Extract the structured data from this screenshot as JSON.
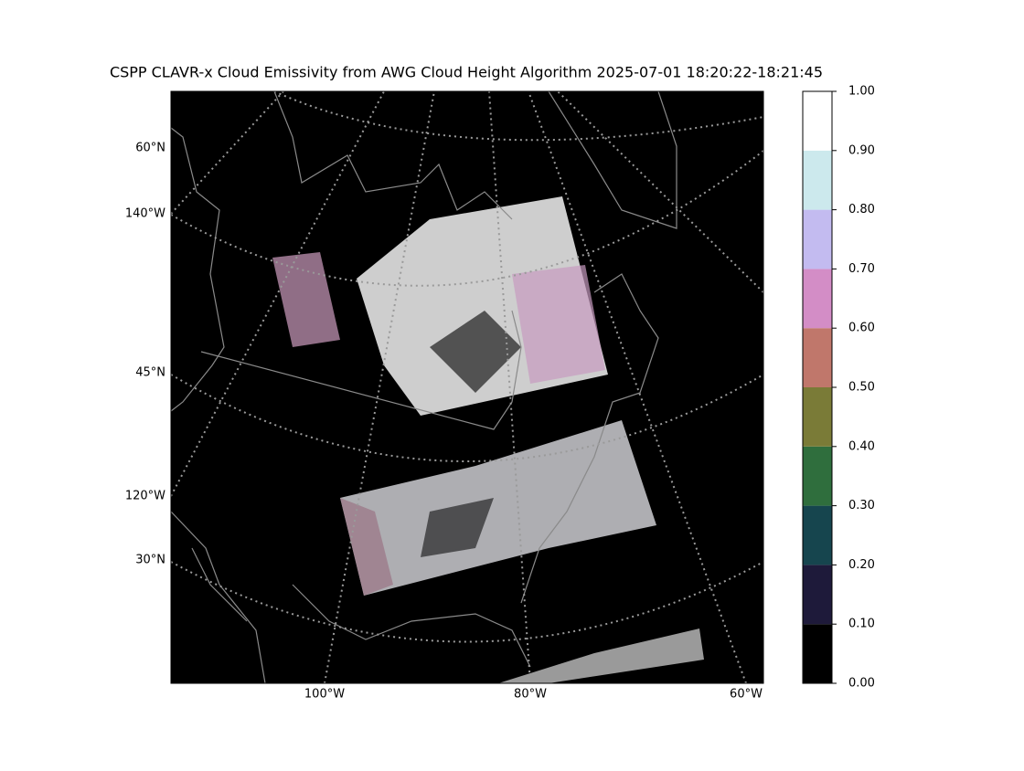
{
  "title": "CSPP CLAVR-x Cloud Emissivity from AWG Cloud Height Algorithm 2025-07-01 18:20:22-18:21:45",
  "map": {
    "lat_labels": [
      "60°N",
      "45°N",
      "30°N"
    ],
    "lon_labels_left": [
      "140°W",
      "120°W"
    ],
    "lon_labels_bottom": [
      "100°W",
      "80°W",
      "60°W"
    ]
  },
  "colorbar": {
    "ticks": [
      {
        "value": 0,
        "label": "0.00"
      },
      {
        "value": 0.1,
        "label": "0.10"
      },
      {
        "value": 0.2,
        "label": "0.20"
      },
      {
        "value": 0.3,
        "label": "0.30"
      },
      {
        "value": 0.4,
        "label": "0.40"
      },
      {
        "value": 0.5,
        "label": "0.50"
      },
      {
        "value": 0.6,
        "label": "0.60"
      },
      {
        "value": 0.7,
        "label": "0.70"
      },
      {
        "value": 0.8,
        "label": "0.80"
      },
      {
        "value": 0.9,
        "label": "0.90"
      },
      {
        "value": 1,
        "label": "1.00"
      }
    ],
    "colors": [
      "#000000",
      "#1e1a3a",
      "#16454e",
      "#2f6e3d",
      "#7a7b37",
      "#c0776b",
      "#d38dc6",
      "#c3bbf0",
      "#cce9ed",
      "#ffffff"
    ]
  }
}
